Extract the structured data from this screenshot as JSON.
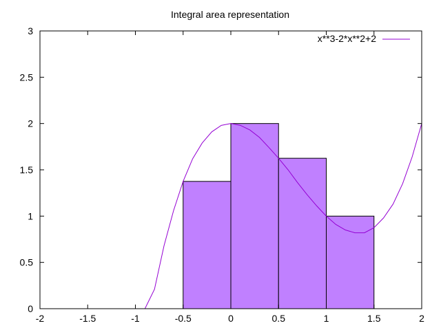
{
  "chart_data": {
    "type": "bar",
    "title": "Integral area representation",
    "xlabel": "",
    "ylabel": "",
    "xlim": [
      -2,
      2
    ],
    "ylim": [
      0,
      3
    ],
    "x_ticks": [
      "-2",
      "-1.5",
      "-1",
      "-0.5",
      "0",
      "0.5",
      "1",
      "1.5",
      "2"
    ],
    "y_ticks": [
      "0",
      "0.5",
      "1",
      "1.5",
      "2",
      "2.5",
      "3"
    ],
    "grid": false,
    "legend_position": "top-right",
    "bars": [
      {
        "x_start": -0.5,
        "x_end": 0.0,
        "value": 1.375
      },
      {
        "x_start": 0.0,
        "x_end": 0.5,
        "value": 2.0
      },
      {
        "x_start": 0.5,
        "x_end": 1.0,
        "value": 1.625
      },
      {
        "x_start": 1.0,
        "x_end": 1.5,
        "value": 1.0
      }
    ],
    "series": [
      {
        "name": "x**3-2*x**2+2",
        "expression": "x**3-2*x**2+2",
        "x": [
          -2.0,
          -1.9,
          -1.8,
          -1.7,
          -1.6,
          -1.5,
          -1.4,
          -1.3,
          -1.2,
          -1.1,
          -1.0,
          -0.9,
          -0.8,
          -0.7,
          -0.6,
          -0.5,
          -0.4,
          -0.3,
          -0.2,
          -0.1,
          0.0,
          0.1,
          0.2,
          0.3,
          0.4,
          0.5,
          0.6,
          0.7,
          0.8,
          0.9,
          1.0,
          1.1,
          1.2,
          1.3,
          1.4,
          1.5,
          1.6,
          1.7,
          1.8,
          1.9,
          2.0
        ],
        "y": [
          0.0,
          0.0,
          0.0,
          0.0,
          0.0,
          0.0,
          0.0,
          0.0,
          0.0,
          0.0,
          0.0,
          0.0,
          0.21,
          0.68,
          1.06,
          1.375,
          1.62,
          1.79,
          1.91,
          1.98,
          2.0,
          1.98,
          1.93,
          1.85,
          1.74,
          1.625,
          1.5,
          1.36,
          1.23,
          1.11,
          1.0,
          0.91,
          0.85,
          0.82,
          0.82,
          0.875,
          0.98,
          1.13,
          1.35,
          1.64,
          2.0
        ]
      }
    ]
  },
  "colors": {
    "bar_fill": "#c080ff",
    "bar_stroke": "#000000",
    "curve": "#9400d3",
    "axis": "#000000"
  }
}
